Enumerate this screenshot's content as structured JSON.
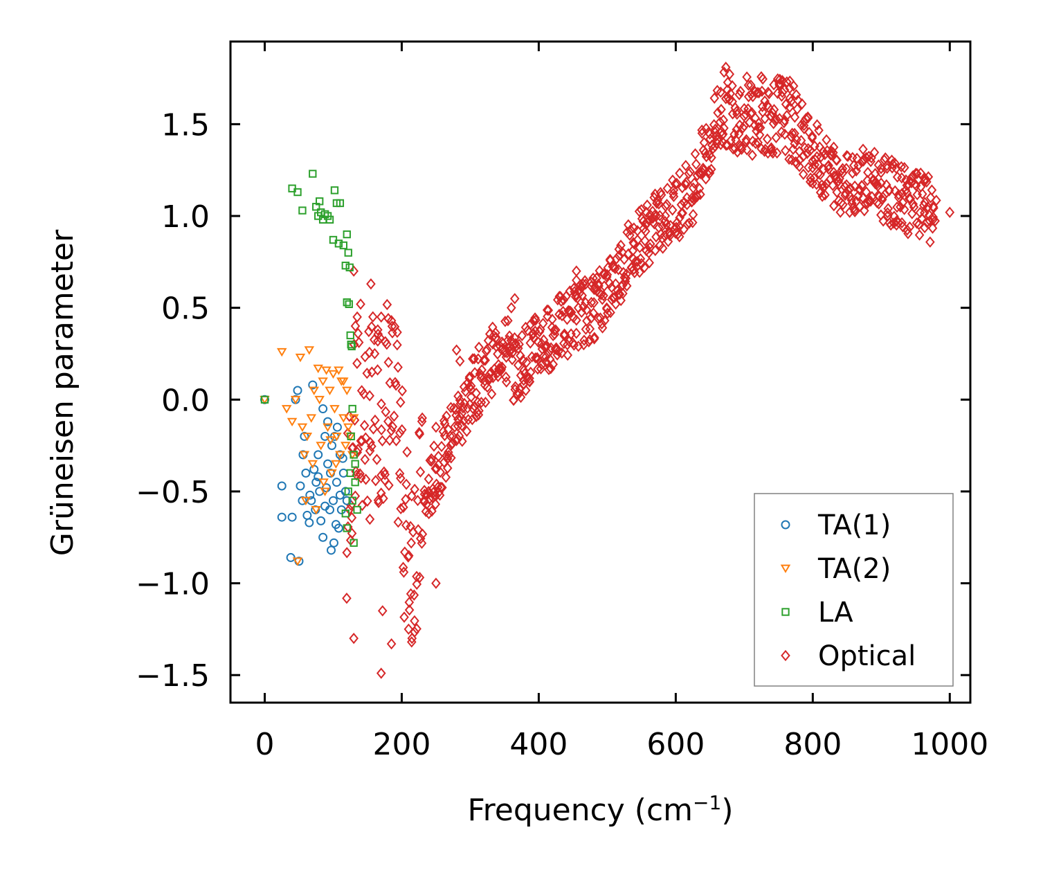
{
  "chart_data": {
    "type": "scatter",
    "title": "",
    "xlabel": "Frequency (cm",
    "xlabel_sup": "−1",
    "xlabel_close": ")",
    "ylabel": "Grüneisen parameter",
    "xlim": [
      -50,
      1030
    ],
    "ylim": [
      -1.65,
      1.95
    ],
    "xticks": [
      0,
      200,
      400,
      600,
      800,
      1000
    ],
    "xtick_labels": [
      "0",
      "200",
      "400",
      "600",
      "800",
      "1000"
    ],
    "yticks": [
      -1.5,
      -1.0,
      -0.5,
      0.0,
      0.5,
      1.0,
      1.5
    ],
    "ytick_labels": [
      "−1.5",
      "−1.0",
      "−0.5",
      "0.0",
      "0.5",
      "1.0",
      "1.5"
    ],
    "legend_position": "lower-right",
    "series": [
      {
        "name": "TA(1)",
        "marker": "circle",
        "color": "#1f77b4",
        "points": [
          [
            0,
            0
          ],
          [
            25,
            -0.47
          ],
          [
            25,
            -0.64
          ],
          [
            38,
            -0.86
          ],
          [
            40,
            -0.64
          ],
          [
            45,
            0.0
          ],
          [
            48,
            0.05
          ],
          [
            50,
            -0.88
          ],
          [
            52,
            -0.47
          ],
          [
            55,
            -0.55
          ],
          [
            58,
            -0.2
          ],
          [
            60,
            -0.4
          ],
          [
            62,
            -0.63
          ],
          [
            65,
            -0.67
          ],
          [
            68,
            -0.55
          ],
          [
            70,
            0.08
          ],
          [
            72,
            -0.38
          ],
          [
            75,
            -0.45
          ],
          [
            78,
            -0.3
          ],
          [
            80,
            -0.5
          ],
          [
            82,
            -0.66
          ],
          [
            85,
            -0.05
          ],
          [
            88,
            -0.2
          ],
          [
            90,
            -0.48
          ],
          [
            92,
            -0.35
          ],
          [
            95,
            -0.6
          ],
          [
            97,
            -0.82
          ],
          [
            100,
            -0.55
          ],
          [
            102,
            -0.2
          ],
          [
            105,
            -0.45
          ],
          [
            108,
            -0.7
          ],
          [
            110,
            -0.3
          ],
          [
            112,
            -0.6
          ],
          [
            115,
            -0.4
          ],
          [
            118,
            -0.5
          ],
          [
            120,
            -0.55
          ],
          [
            85,
            -0.75
          ],
          [
            92,
            -0.12
          ],
          [
            98,
            -0.25
          ],
          [
            104,
            -0.68
          ],
          [
            110,
            -0.52
          ],
          [
            78,
            -0.42
          ],
          [
            66,
            -0.52
          ],
          [
            56,
            -0.3
          ],
          [
            74,
            -0.6
          ],
          [
            88,
            -0.58
          ],
          [
            96,
            -0.4
          ],
          [
            114,
            -0.32
          ],
          [
            106,
            -0.15
          ],
          [
            101,
            -0.78
          ]
        ]
      },
      {
        "name": "TA(2)",
        "marker": "triangle_down",
        "color": "#ff7f0e",
        "points": [
          [
            0,
            0
          ],
          [
            25,
            0.26
          ],
          [
            32,
            -0.05
          ],
          [
            40,
            -0.12
          ],
          [
            45,
            0.0
          ],
          [
            48,
            -0.88
          ],
          [
            52,
            0.23
          ],
          [
            55,
            -0.15
          ],
          [
            58,
            -0.3
          ],
          [
            60,
            -0.55
          ],
          [
            62,
            -0.2
          ],
          [
            65,
            0.27
          ],
          [
            68,
            -0.1
          ],
          [
            70,
            -0.35
          ],
          [
            72,
            0.05
          ],
          [
            75,
            -0.6
          ],
          [
            78,
            0.17
          ],
          [
            80,
            0.0
          ],
          [
            82,
            -0.25
          ],
          [
            85,
            0.1
          ],
          [
            88,
            -0.5
          ],
          [
            90,
            0.16
          ],
          [
            92,
            -0.15
          ],
          [
            95,
            0.05
          ],
          [
            98,
            -0.4
          ],
          [
            100,
            0.14
          ],
          [
            102,
            -0.05
          ],
          [
            105,
            -0.2
          ],
          [
            108,
            0.16
          ],
          [
            110,
            -0.3
          ],
          [
            112,
            0.1
          ],
          [
            115,
            -0.1
          ],
          [
            118,
            -0.25
          ],
          [
            120,
            0.05
          ],
          [
            122,
            -0.15
          ],
          [
            125,
            -0.2
          ],
          [
            128,
            -0.3
          ],
          [
            130,
            -0.1
          ],
          [
            115,
            0.1
          ],
          [
            104,
            -0.35
          ],
          [
            96,
            -0.22
          ],
          [
            86,
            -0.45
          ]
        ]
      },
      {
        "name": "LA",
        "marker": "square",
        "color": "#2ca02c",
        "points": [
          [
            0,
            0
          ],
          [
            40,
            1.15
          ],
          [
            48,
            1.13
          ],
          [
            55,
            1.03
          ],
          [
            70,
            1.23
          ],
          [
            75,
            1.05
          ],
          [
            78,
            1.0
          ],
          [
            80,
            1.08
          ],
          [
            82,
            1.02
          ],
          [
            85,
            0.98
          ],
          [
            88,
            1.01
          ],
          [
            92,
            1.0
          ],
          [
            95,
            0.98
          ],
          [
            100,
            0.87
          ],
          [
            102,
            1.14
          ],
          [
            105,
            1.07
          ],
          [
            108,
            0.85
          ],
          [
            110,
            1.07
          ],
          [
            115,
            0.84
          ],
          [
            118,
            0.73
          ],
          [
            120,
            0.9
          ],
          [
            120,
            0.53
          ],
          [
            122,
            0.8
          ],
          [
            123,
            0.52
          ],
          [
            124,
            0.72
          ],
          [
            125,
            0.35
          ],
          [
            126,
            0.3
          ],
          [
            127,
            0.29
          ],
          [
            128,
            -0.05
          ],
          [
            130,
            -0.3
          ],
          [
            130,
            -0.78
          ],
          [
            120,
            -0.7
          ],
          [
            118,
            -0.62
          ],
          [
            122,
            -0.5
          ],
          [
            125,
            -0.4
          ],
          [
            128,
            -0.55
          ],
          [
            132,
            -0.35
          ],
          [
            135,
            -0.6
          ],
          [
            126,
            -0.2
          ],
          [
            132,
            -0.45
          ]
        ]
      },
      {
        "name": "Optical",
        "marker": "diamond",
        "color": "#d62728",
        "ridge": [
          [
            120,
            -0.9
          ],
          [
            125,
            -0.3
          ],
          [
            135,
            -0.1
          ],
          [
            150,
            -0.15
          ],
          [
            165,
            -0.05
          ],
          [
            180,
            0.05
          ],
          [
            195,
            -0.2
          ],
          [
            205,
            -0.7
          ],
          [
            215,
            -0.8
          ],
          [
            240,
            -0.5
          ],
          [
            260,
            -0.3
          ],
          [
            290,
            -0.05
          ],
          [
            320,
            0.15
          ],
          [
            345,
            0.3
          ],
          [
            365,
            0.15
          ],
          [
            385,
            0.25
          ],
          [
            420,
            0.35
          ],
          [
            450,
            0.45
          ],
          [
            480,
            0.5
          ],
          [
            510,
            0.65
          ],
          [
            540,
            0.85
          ],
          [
            570,
            0.95
          ],
          [
            600,
            1.05
          ],
          [
            625,
            1.15
          ],
          [
            650,
            1.4
          ],
          [
            670,
            1.6
          ],
          [
            700,
            1.55
          ],
          [
            730,
            1.55
          ],
          [
            760,
            1.55
          ],
          [
            790,
            1.4
          ],
          [
            820,
            1.25
          ],
          [
            850,
            1.18
          ],
          [
            870,
            1.22
          ],
          [
            900,
            1.15
          ],
          [
            930,
            1.1
          ],
          [
            960,
            1.05
          ],
          [
            980,
            1.01
          ]
        ],
        "outliers": [
          [
            130,
            0.7
          ],
          [
            155,
            0.63
          ],
          [
            135,
            0.45
          ],
          [
            140,
            0.52
          ],
          [
            170,
            0.45
          ],
          [
            185,
            0.43
          ],
          [
            165,
            0.38
          ],
          [
            172,
            -1.15
          ],
          [
            170,
            -1.49
          ],
          [
            185,
            -1.33
          ],
          [
            210,
            -1.25
          ],
          [
            215,
            -1.3
          ],
          [
            250,
            -1.0
          ],
          [
            280,
            0.27
          ],
          [
            285,
            0.21
          ],
          [
            250,
            -0.15
          ],
          [
            230,
            -0.1
          ],
          [
            130,
            -1.3
          ],
          [
            360,
            0.5
          ],
          [
            365,
            0.55
          ],
          [
            355,
            0.43
          ],
          [
            455,
            0.7
          ],
          [
            455,
            0.65
          ],
          [
            500,
            0.68
          ],
          [
            510,
            0.72
          ],
          [
            720,
            1.4
          ],
          [
            740,
            1.35
          ],
          [
            770,
            1.45
          ],
          [
            800,
            1.3
          ],
          [
            1000,
            1.02
          ]
        ]
      }
    ]
  }
}
